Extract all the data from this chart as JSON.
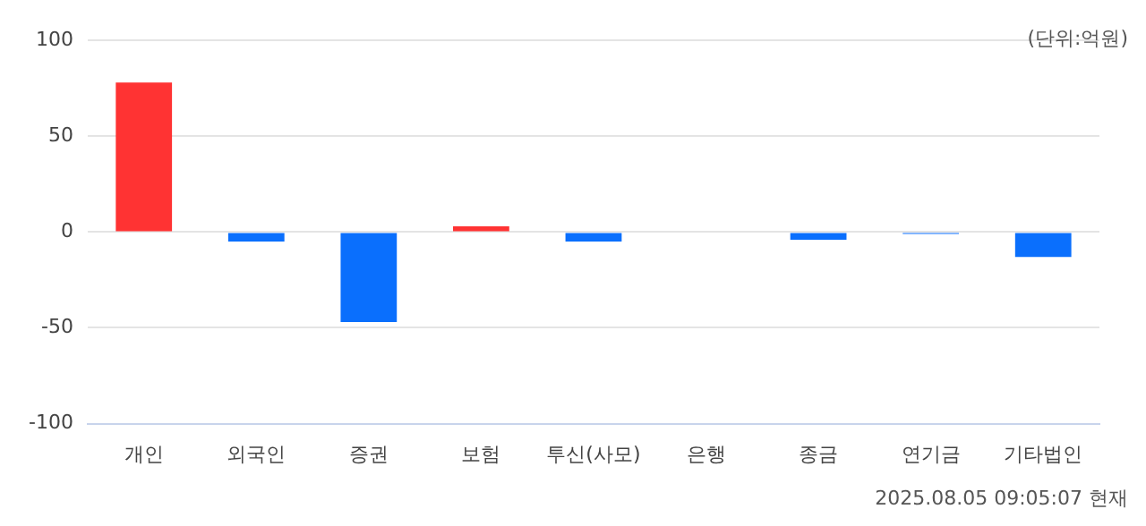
{
  "chart_data": {
    "type": "bar",
    "categories": [
      "개인",
      "외국인",
      "증권",
      "보험",
      "투신(사모)",
      "은행",
      "종금",
      "연기금",
      "기타법인"
    ],
    "values": [
      78,
      -5,
      -47,
      3,
      -5,
      0,
      -4,
      -1,
      -13
    ],
    "colors": [
      "#ff3333",
      "#0a6ffd",
      "#0a6ffd",
      "#ff3333",
      "#0a6ffd",
      "#0a6ffd",
      "#0a6ffd",
      "#0a6ffd",
      "#0a6ffd"
    ],
    "ylim": [
      -100,
      100
    ],
    "yticks": [
      -100,
      -50,
      0,
      50,
      100
    ],
    "grid": "y",
    "annotations": [
      "(단위:억원)",
      "2025.08.05 09:05:07 현재"
    ]
  }
}
